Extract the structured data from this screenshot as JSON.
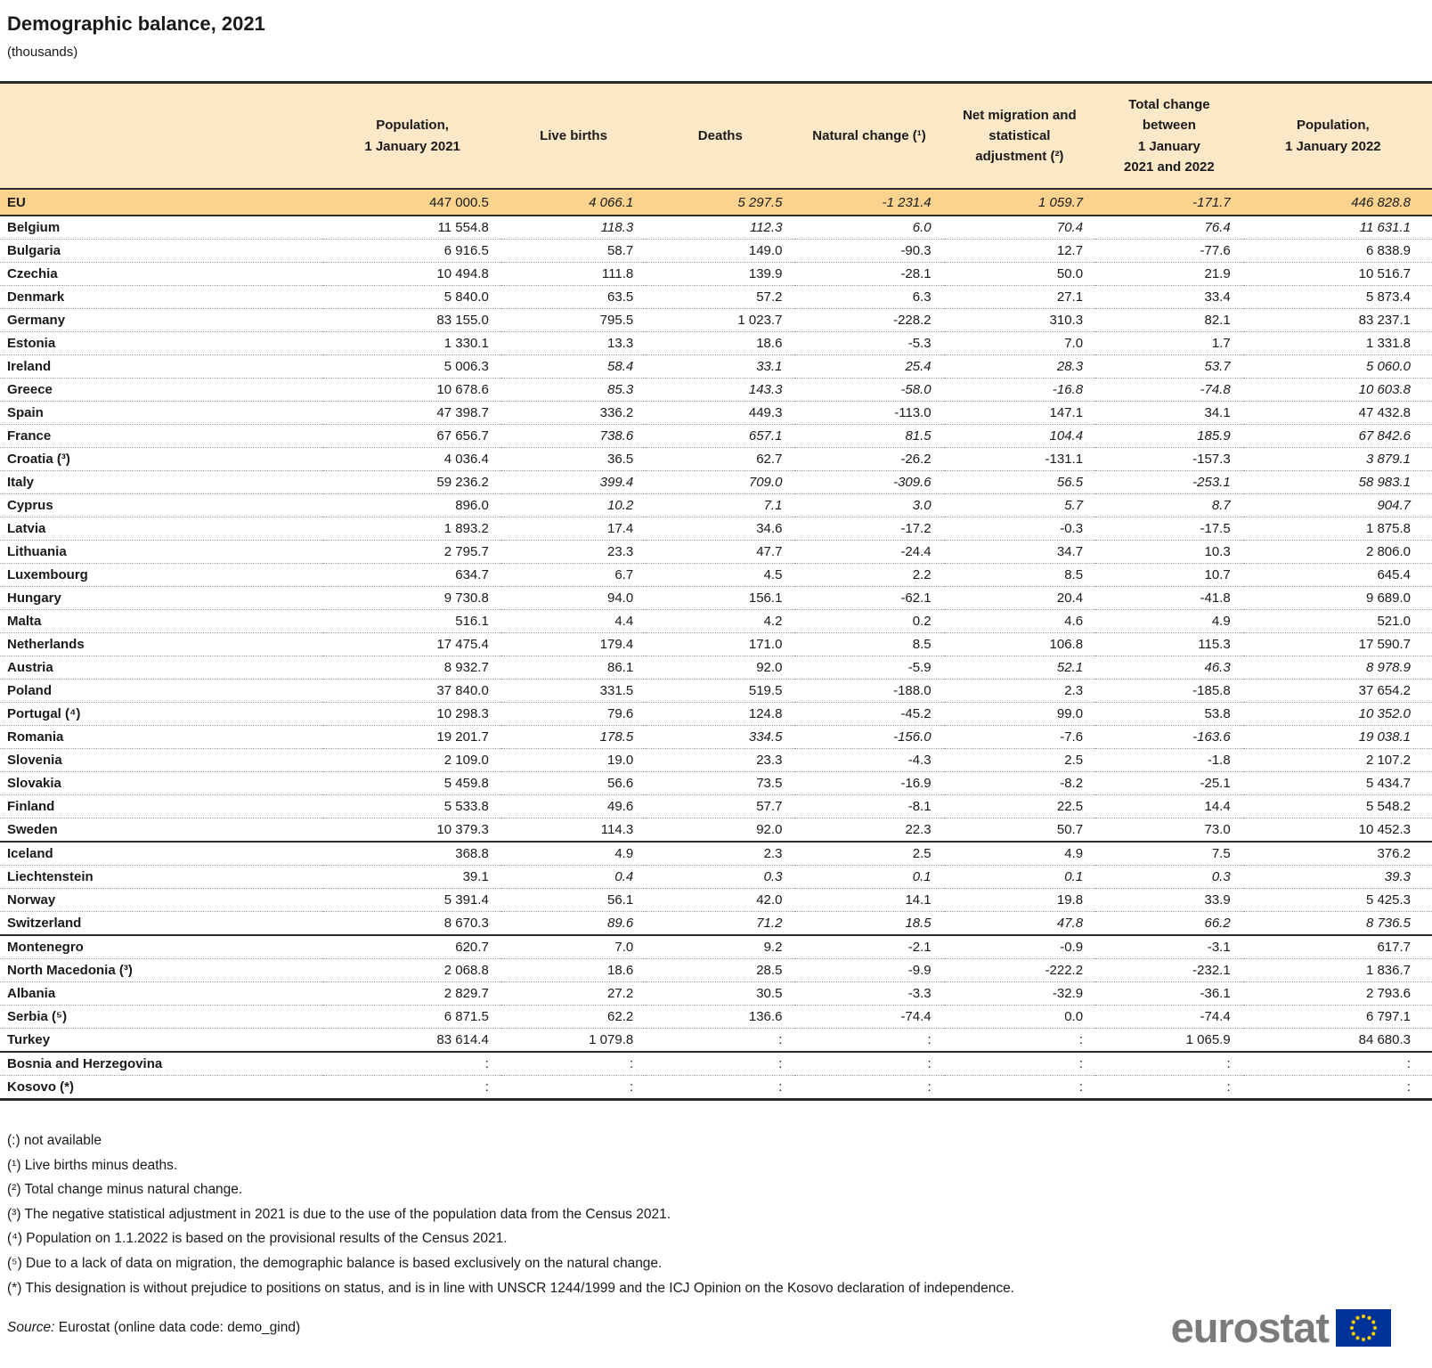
{
  "title": "Demographic balance, 2021",
  "subtitle": "(thousands)",
  "colors": {
    "header_bg": "#fde9c8",
    "eu_row_bg": "#fbd28e",
    "rule_dark": "#2b2b2b",
    "dotted_rule": "#9f9f9f",
    "logo_gray": "#7b7b7b",
    "flag_blue": "#003399",
    "flag_stars": "#ffcc00"
  },
  "table": {
    "columns": [
      "",
      "Population,\n1 January 2021",
      "Live births",
      "Deaths",
      "Natural change (¹)",
      "Net migration and\nstatistical\nadjustment (²)",
      "Total change\nbetween\n1 January\n2021 and 2022",
      "Population,\n1 January 2022"
    ],
    "rows": [
      {
        "name": "EU",
        "eu": true,
        "values": [
          "447 000.5",
          "4 066.1",
          "5 297.5",
          "-1 231.4",
          "1 059.7",
          "-171.7",
          "446 828.8"
        ],
        "italics": [
          false,
          true,
          true,
          true,
          true,
          true,
          true
        ]
      },
      {
        "name": "Belgium",
        "values": [
          "11 554.8",
          "118.3",
          "112.3",
          "6.0",
          "70.4",
          "76.4",
          "11 631.1"
        ],
        "italics": [
          false,
          true,
          true,
          true,
          true,
          true,
          true
        ]
      },
      {
        "name": "Bulgaria",
        "values": [
          "6 916.5",
          "58.7",
          "149.0",
          "-90.3",
          "12.7",
          "-77.6",
          "6 838.9"
        ],
        "italics": [
          false,
          false,
          false,
          false,
          false,
          false,
          false
        ]
      },
      {
        "name": "Czechia",
        "values": [
          "10 494.8",
          "111.8",
          "139.9",
          "-28.1",
          "50.0",
          "21.9",
          "10 516.7"
        ],
        "italics": [
          false,
          false,
          false,
          false,
          false,
          false,
          false
        ]
      },
      {
        "name": "Denmark",
        "values": [
          "5 840.0",
          "63.5",
          "57.2",
          "6.3",
          "27.1",
          "33.4",
          "5 873.4"
        ],
        "italics": [
          false,
          false,
          false,
          false,
          false,
          false,
          false
        ]
      },
      {
        "name": "Germany",
        "values": [
          "83 155.0",
          "795.5",
          "1 023.7",
          "-228.2",
          "310.3",
          "82.1",
          "83 237.1"
        ],
        "italics": [
          false,
          false,
          false,
          false,
          false,
          false,
          false
        ]
      },
      {
        "name": "Estonia",
        "values": [
          "1 330.1",
          "13.3",
          "18.6",
          "-5.3",
          "7.0",
          "1.7",
          "1 331.8"
        ],
        "italics": [
          false,
          false,
          false,
          false,
          false,
          false,
          false
        ]
      },
      {
        "name": "Ireland",
        "values": [
          "5 006.3",
          "58.4",
          "33.1",
          "25.4",
          "28.3",
          "53.7",
          "5 060.0"
        ],
        "italics": [
          false,
          true,
          true,
          true,
          true,
          true,
          true
        ]
      },
      {
        "name": "Greece",
        "values": [
          "10 678.6",
          "85.3",
          "143.3",
          "-58.0",
          "-16.8",
          "-74.8",
          "10 603.8"
        ],
        "italics": [
          false,
          true,
          true,
          true,
          true,
          true,
          true
        ]
      },
      {
        "name": "Spain",
        "values": [
          "47 398.7",
          "336.2",
          "449.3",
          "-113.0",
          "147.1",
          "34.1",
          "47 432.8"
        ],
        "italics": [
          false,
          false,
          false,
          false,
          false,
          false,
          false
        ]
      },
      {
        "name": "France",
        "values": [
          "67 656.7",
          "738.6",
          "657.1",
          "81.5",
          "104.4",
          "185.9",
          "67 842.6"
        ],
        "italics": [
          false,
          true,
          true,
          true,
          true,
          true,
          true
        ]
      },
      {
        "name": "Croatia (³)",
        "values": [
          "4 036.4",
          "36.5",
          "62.7",
          "-26.2",
          "-131.1",
          "-157.3",
          "3 879.1"
        ],
        "italics": [
          false,
          false,
          false,
          false,
          false,
          false,
          true
        ]
      },
      {
        "name": "Italy",
        "values": [
          "59 236.2",
          "399.4",
          "709.0",
          "-309.6",
          "56.5",
          "-253.1",
          "58 983.1"
        ],
        "italics": [
          false,
          true,
          true,
          true,
          true,
          true,
          true
        ]
      },
      {
        "name": "Cyprus",
        "values": [
          "896.0",
          "10.2",
          "7.1",
          "3.0",
          "5.7",
          "8.7",
          "904.7"
        ],
        "italics": [
          false,
          true,
          true,
          true,
          true,
          true,
          true
        ]
      },
      {
        "name": "Latvia",
        "values": [
          "1 893.2",
          "17.4",
          "34.6",
          "-17.2",
          "-0.3",
          "-17.5",
          "1 875.8"
        ],
        "italics": [
          false,
          false,
          false,
          false,
          false,
          false,
          false
        ]
      },
      {
        "name": "Lithuania",
        "values": [
          "2 795.7",
          "23.3",
          "47.7",
          "-24.4",
          "34.7",
          "10.3",
          "2 806.0"
        ],
        "italics": [
          false,
          false,
          false,
          false,
          false,
          false,
          false
        ]
      },
      {
        "name": "Luxembourg",
        "values": [
          "634.7",
          "6.7",
          "4.5",
          "2.2",
          "8.5",
          "10.7",
          "645.4"
        ],
        "italics": [
          false,
          false,
          false,
          false,
          false,
          false,
          false
        ]
      },
      {
        "name": "Hungary",
        "values": [
          "9 730.8",
          "94.0",
          "156.1",
          "-62.1",
          "20.4",
          "-41.8",
          "9 689.0"
        ],
        "italics": [
          false,
          false,
          false,
          false,
          false,
          false,
          false
        ]
      },
      {
        "name": "Malta",
        "values": [
          "516.1",
          "4.4",
          "4.2",
          "0.2",
          "4.6",
          "4.9",
          "521.0"
        ],
        "italics": [
          false,
          false,
          false,
          false,
          false,
          false,
          false
        ]
      },
      {
        "name": "Netherlands",
        "values": [
          "17 475.4",
          "179.4",
          "171.0",
          "8.5",
          "106.8",
          "115.3",
          "17 590.7"
        ],
        "italics": [
          false,
          false,
          false,
          false,
          false,
          false,
          false
        ]
      },
      {
        "name": "Austria",
        "values": [
          "8 932.7",
          "86.1",
          "92.0",
          "-5.9",
          "52.1",
          "46.3",
          "8 978.9"
        ],
        "italics": [
          false,
          false,
          false,
          false,
          true,
          true,
          true
        ]
      },
      {
        "name": "Poland",
        "values": [
          "37 840.0",
          "331.5",
          "519.5",
          "-188.0",
          "2.3",
          "-185.8",
          "37 654.2"
        ],
        "italics": [
          false,
          false,
          false,
          false,
          false,
          false,
          false
        ]
      },
      {
        "name": "Portugal (⁴)",
        "values": [
          "10 298.3",
          "79.6",
          "124.8",
          "-45.2",
          "99.0",
          "53.8",
          "10 352.0"
        ],
        "italics": [
          false,
          false,
          false,
          false,
          false,
          false,
          true
        ]
      },
      {
        "name": "Romania",
        "values": [
          "19 201.7",
          "178.5",
          "334.5",
          "-156.0",
          "-7.6",
          "-163.6",
          "19 038.1"
        ],
        "italics": [
          false,
          true,
          true,
          true,
          false,
          true,
          true
        ]
      },
      {
        "name": "Slovenia",
        "values": [
          "2 109.0",
          "19.0",
          "23.3",
          "-4.3",
          "2.5",
          "-1.8",
          "2 107.2"
        ],
        "italics": [
          false,
          false,
          false,
          false,
          false,
          false,
          false
        ]
      },
      {
        "name": "Slovakia",
        "values": [
          "5 459.8",
          "56.6",
          "73.5",
          "-16.9",
          "-8.2",
          "-25.1",
          "5 434.7"
        ],
        "italics": [
          false,
          false,
          false,
          false,
          false,
          false,
          false
        ]
      },
      {
        "name": "Finland",
        "values": [
          "5 533.8",
          "49.6",
          "57.7",
          "-8.1",
          "22.5",
          "14.4",
          "5 548.2"
        ],
        "italics": [
          false,
          false,
          false,
          false,
          false,
          false,
          false
        ]
      },
      {
        "name": "Sweden",
        "separator_after": true,
        "values": [
          "10 379.3",
          "114.3",
          "92.0",
          "22.3",
          "50.7",
          "73.0",
          "10 452.3"
        ],
        "italics": [
          false,
          false,
          false,
          false,
          false,
          false,
          false
        ]
      },
      {
        "name": "Iceland",
        "values": [
          "368.8",
          "4.9",
          "2.3",
          "2.5",
          "4.9",
          "7.5",
          "376.2"
        ],
        "italics": [
          false,
          false,
          false,
          false,
          false,
          false,
          false
        ]
      },
      {
        "name": "Liechtenstein",
        "values": [
          "39.1",
          "0.4",
          "0.3",
          "0.1",
          "0.1",
          "0.3",
          "39.3"
        ],
        "italics": [
          false,
          true,
          true,
          true,
          true,
          true,
          true
        ]
      },
      {
        "name": "Norway",
        "values": [
          "5 391.4",
          "56.1",
          "42.0",
          "14.1",
          "19.8",
          "33.9",
          "5 425.3"
        ],
        "italics": [
          false,
          false,
          false,
          false,
          false,
          false,
          false
        ]
      },
      {
        "name": "Switzerland",
        "separator_after": true,
        "values": [
          "8 670.3",
          "89.6",
          "71.2",
          "18.5",
          "47.8",
          "66.2",
          "8 736.5"
        ],
        "italics": [
          false,
          true,
          true,
          true,
          true,
          true,
          true
        ]
      },
      {
        "name": "Montenegro",
        "values": [
          "620.7",
          "7.0",
          "9.2",
          "-2.1",
          "-0.9",
          "-3.1",
          "617.7"
        ],
        "italics": [
          false,
          false,
          false,
          false,
          false,
          false,
          false
        ]
      },
      {
        "name": "North Macedonia (³)",
        "values": [
          "2 068.8",
          "18.6",
          "28.5",
          "-9.9",
          "-222.2",
          "-232.1",
          "1 836.7"
        ],
        "italics": [
          false,
          false,
          false,
          false,
          false,
          false,
          false
        ]
      },
      {
        "name": "Albania",
        "values": [
          "2 829.7",
          "27.2",
          "30.5",
          "-3.3",
          "-32.9",
          "-36.1",
          "2 793.6"
        ],
        "italics": [
          false,
          false,
          false,
          false,
          false,
          false,
          false
        ]
      },
      {
        "name": "Serbia (⁵)",
        "values": [
          "6 871.5",
          "62.2",
          "136.6",
          "-74.4",
          "0.0",
          "-74.4",
          "6 797.1"
        ],
        "italics": [
          false,
          false,
          false,
          false,
          false,
          false,
          false
        ]
      },
      {
        "name": "Turkey",
        "separator_after": true,
        "values": [
          "83 614.4",
          "1 079.8",
          ":",
          ":",
          ":",
          "1 065.9",
          "84 680.3"
        ],
        "italics": [
          false,
          false,
          false,
          false,
          false,
          false,
          false
        ]
      },
      {
        "name": "Bosnia and Herzegovina",
        "values": [
          ":",
          ":",
          ":",
          ":",
          ":",
          ":",
          ":"
        ],
        "italics": [
          false,
          false,
          false,
          false,
          false,
          false,
          false
        ]
      },
      {
        "name": "Kosovo (*)",
        "values": [
          ":",
          ":",
          ":",
          ":",
          ":",
          ":",
          ":"
        ],
        "italics": [
          false,
          false,
          false,
          false,
          false,
          false,
          false
        ]
      }
    ]
  },
  "not_available_note": "(:) not available",
  "footnotes": [
    "(¹) Live births minus deaths.",
    "(²) Total change minus natural change.",
    "(³) The negative statistical adjustment in 2021 is due to the use of the population data from the Census 2021.",
    "(⁴) Population on 1.1.2022 is based on the provisional results of the Census 2021.",
    "(⁵) Due to a lack of data on migration, the demographic balance is based exclusively on the natural change.",
    "(*) This designation is without prejudice to positions on status, and is in line with UNSCR 1244/1999 and the ICJ Opinion on the Kosovo declaration of independence."
  ],
  "source": {
    "label": "Source:",
    "text": " Eurostat (online data code: demo_gind)"
  },
  "logo": {
    "text": "eurostat"
  }
}
